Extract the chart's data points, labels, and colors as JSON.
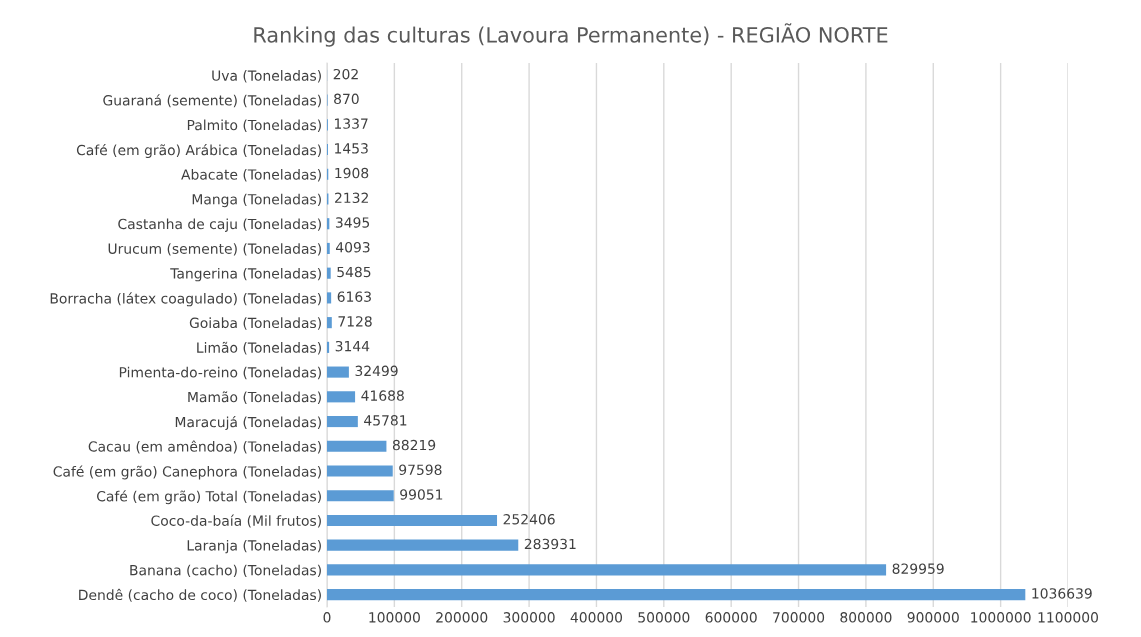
{
  "chart_data": {
    "type": "bar",
    "orientation": "horizontal",
    "title": "Ranking das culturas (Lavoura Permanente) - REGIÃO NORTE",
    "categories": [
      "Uva (Toneladas)",
      "Guaraná (semente) (Toneladas)",
      "Palmito (Toneladas)",
      "Café (em grão) Arábica (Toneladas)",
      "Abacate (Toneladas)",
      "Manga (Toneladas)",
      "Castanha de caju (Toneladas)",
      "Urucum (semente) (Toneladas)",
      "Tangerina (Toneladas)",
      "Borracha (látex coagulado) (Toneladas)",
      "Goiaba (Toneladas)",
      "Limão (Toneladas)",
      "Pimenta-do-reino (Toneladas)",
      "Mamão (Toneladas)",
      "Maracujá (Toneladas)",
      "Cacau (em amêndoa) (Toneladas)",
      "Café (em grão) Canephora (Toneladas)",
      "Café (em grão) Total (Toneladas)",
      "Coco-da-baía (Mil frutos)",
      "Laranja (Toneladas)",
      "Banana (cacho) (Toneladas)",
      "Dendê (cacho de coco) (Toneladas)"
    ],
    "values": [
      202,
      870,
      1337,
      1453,
      1908,
      2132,
      3495,
      4093,
      5485,
      6163,
      7128,
      3144,
      32499,
      41688,
      45781,
      88219,
      97598,
      99051,
      252406,
      283931,
      829959,
      1036639
    ],
    "color": "#5b9bd5",
    "data_labels": true,
    "grid": "x",
    "xlim": [
      0,
      1100000
    ],
    "xticks": [
      0,
      100000,
      200000,
      300000,
      400000,
      500000,
      600000,
      700000,
      800000,
      900000,
      1000000,
      1100000
    ]
  }
}
